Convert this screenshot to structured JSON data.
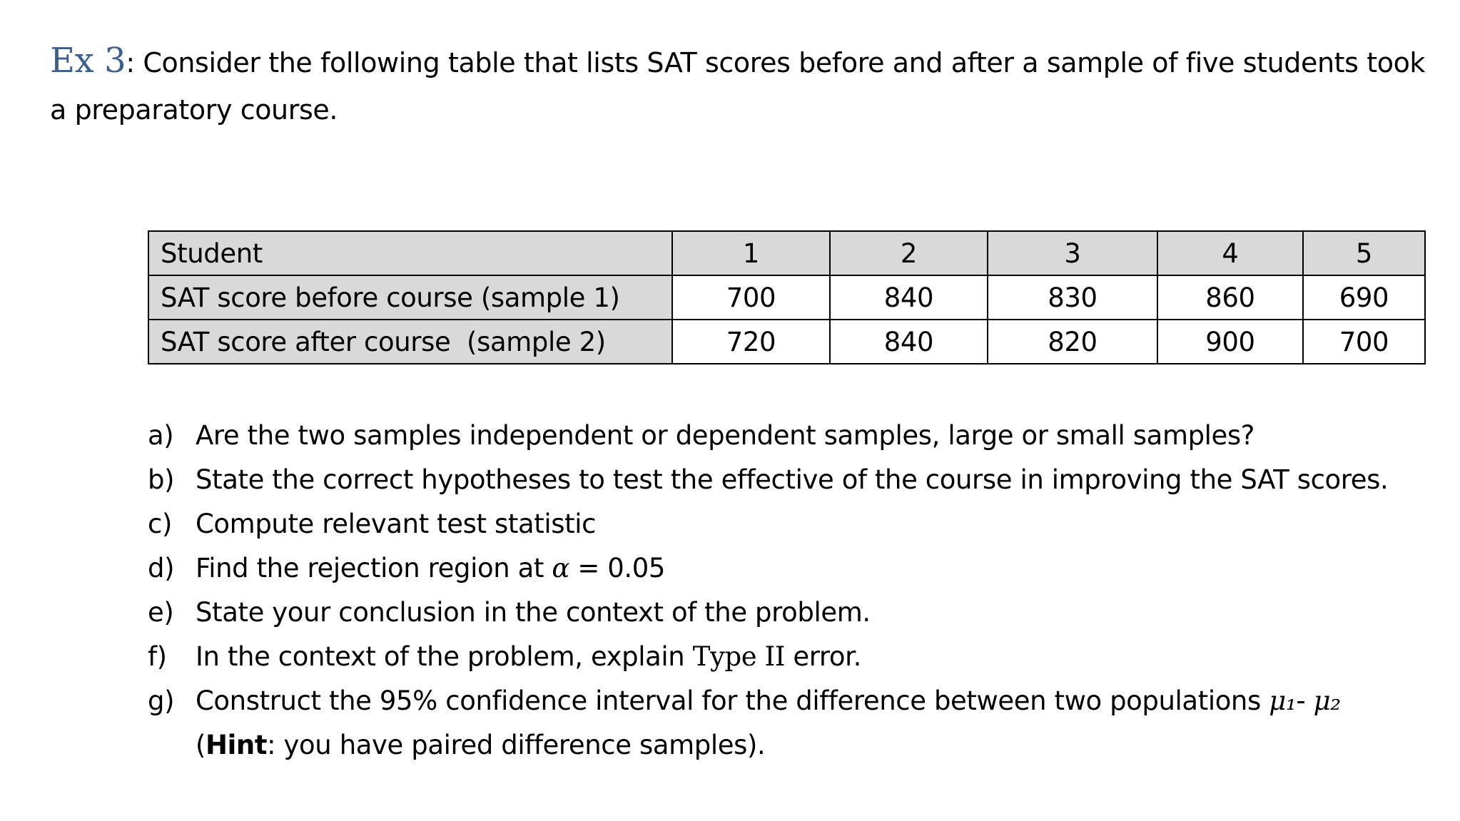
{
  "exercise": {
    "label": "Ex 3",
    "intro": ": Consider the following table that lists SAT scores before and after a sample of five students took a preparatory course."
  },
  "table": {
    "header": {
      "label": "Student",
      "values": [
        "1",
        "2",
        "3",
        "4",
        "5"
      ]
    },
    "rows": [
      {
        "label": "SAT score before course (sample 1)",
        "values": [
          "700",
          "840",
          "830",
          "860",
          "690"
        ]
      },
      {
        "label": "SAT score after course  (sample 2)",
        "values": [
          "720",
          "840",
          "820",
          "900",
          "700"
        ]
      }
    ]
  },
  "questions": {
    "a": {
      "marker": "a)",
      "text": "Are the two samples independent or dependent samples, large or small samples?"
    },
    "b": {
      "marker": "b)",
      "text": "State the correct hypotheses to test the effective of the course in improving the SAT scores."
    },
    "c": {
      "marker": "c)",
      "text": "Compute relevant test statistic"
    },
    "d": {
      "marker": "d)",
      "text": "Find the rejection region at ",
      "symbol": "α",
      "rest": " = 0.05"
    },
    "e": {
      "marker": "e)",
      "text": "State your conclusion in the context of the problem."
    },
    "f": {
      "marker": "f)",
      "text": "In the context of the problem, explain ",
      "type_ii": "Type II",
      "rest": " error."
    },
    "g": {
      "marker": "g)",
      "text": "Construct the 95% confidence interval for the difference between two populations ",
      "mu1": "μ₁",
      "dash": "- ",
      "mu2": "μ₂",
      "hint_open": "(",
      "hint_label": "Hint",
      "hint_rest": ": you have paired difference samples)."
    }
  }
}
